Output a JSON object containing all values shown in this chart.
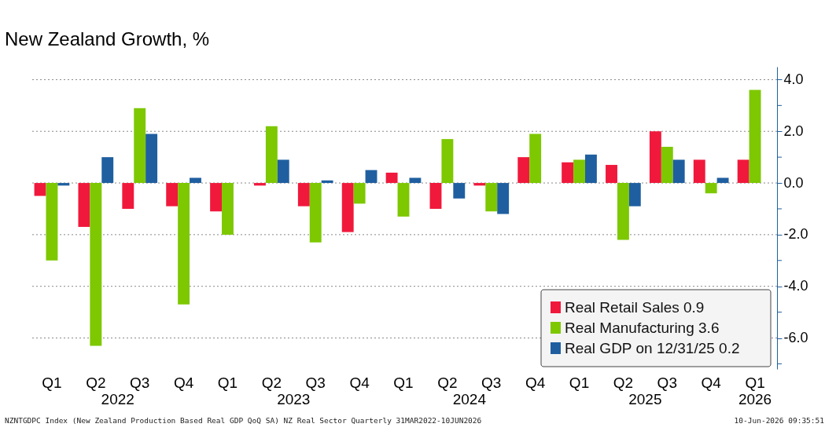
{
  "chart_data": {
    "type": "bar",
    "title": "New Zealand Growth, %",
    "categories": [
      "Q1",
      "Q2",
      "Q3",
      "Q4",
      "Q1",
      "Q2",
      "Q3",
      "Q4",
      "Q1",
      "Q2",
      "Q3",
      "Q4",
      "Q1",
      "Q2",
      "Q3",
      "Q4",
      "Q1"
    ],
    "series": [
      {
        "name": "Real Retail Sales 0.9",
        "color": "#f0193c",
        "values": [
          -0.5,
          -1.7,
          -1.0,
          -0.9,
          -1.1,
          -0.1,
          -0.9,
          -1.9,
          0.4,
          -1.0,
          -0.1,
          1.0,
          0.8,
          0.7,
          2.0,
          0.9,
          0.9
        ]
      },
      {
        "name": "Real Manufacturing 3.6",
        "color": "#7dc800",
        "values": [
          -3.0,
          -6.3,
          2.9,
          -4.7,
          -2.0,
          2.2,
          -2.3,
          -0.8,
          -1.3,
          1.7,
          -1.1,
          1.9,
          0.9,
          -2.2,
          1.4,
          -0.4,
          3.6
        ]
      },
      {
        "name": "Real GDP on 12/31/25 0.2",
        "color": "#1f5fa0",
        "values": [
          -0.1,
          1.0,
          1.9,
          0.2,
          0.0,
          0.9,
          0.1,
          0.5,
          0.2,
          -0.6,
          -1.2,
          0.0,
          1.1,
          -0.9,
          0.9,
          0.2,
          null
        ]
      }
    ],
    "ylim": [
      -7.2,
      4.5
    ],
    "yticks": [
      {
        "value": -7,
        "label": null
      },
      {
        "value": -6,
        "label": "-6.0"
      },
      {
        "value": -5,
        "label": null
      },
      {
        "value": -4,
        "label": "-4.0"
      },
      {
        "value": -3,
        "label": null
      },
      {
        "value": -2,
        "label": "-2.0"
      },
      {
        "value": -1,
        "label": null
      },
      {
        "value": 0,
        "label": "0.0"
      },
      {
        "value": 1,
        "label": null
      },
      {
        "value": 2,
        "label": "2.0"
      },
      {
        "value": 3,
        "label": null
      },
      {
        "value": 4,
        "label": "4.0"
      }
    ],
    "grid": "y",
    "legend": "bottom right",
    "annotations": [
      "2022",
      "2023",
      "2024",
      "2025",
      "2026",
      "NZNTGDPC Index (New Zealand Production Based Real GDP QoQ SA) NZ Real Sector Quarterly 31MAR2022-10JUN2026",
      "10-Jun-2026 09:35:51"
    ]
  }
}
